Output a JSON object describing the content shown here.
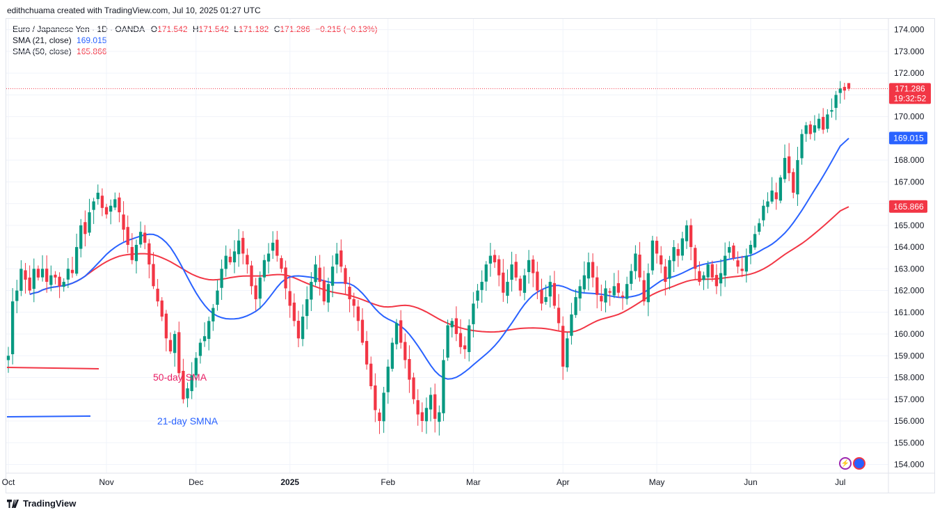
{
  "header": {
    "attribution": "edithchuama created with TradingView.com, Jul 10, 2025 01:27 UTC"
  },
  "legend": {
    "symbol": "Euro / Japanese Yen · 1D · OANDA",
    "o_label": "O",
    "o_value": "171.542",
    "h_label": "H",
    "h_value": "171.542",
    "l_label": "L",
    "l_value": "171.182",
    "c_label": "C",
    "c_value": "171.286",
    "change": "−0.215 (−0.13%)",
    "sma21_label": "SMA (21, close)",
    "sma21_value": "169.015",
    "sma50_label": "SMA (50, close)",
    "sma50_value": "165.866"
  },
  "annotations": {
    "sma50_text": "50-day SMA",
    "sma21_text": "21-day SMNA"
  },
  "footer": {
    "brand": "TradingView"
  },
  "colors": {
    "up": "#089981",
    "down": "#f23645",
    "sma21": "#2962ff",
    "sma50": "#f23645",
    "grid": "#f0f3fa",
    "text": "#131722",
    "anno50": "#e91e63"
  },
  "chart_data": {
    "type": "candlestick",
    "ylim": [
      153.6,
      174.5
    ],
    "y_ticks": [
      "174.000",
      "173.000",
      "172.000",
      "171.000",
      "170.000",
      "169.000",
      "168.000",
      "167.000",
      "166.000",
      "165.000",
      "164.000",
      "163.000",
      "162.000",
      "161.000",
      "160.000",
      "159.000",
      "158.000",
      "157.000",
      "156.000",
      "155.000",
      "154.000"
    ],
    "x_ticks": [
      {
        "label": "Oct",
        "day": 0
      },
      {
        "label": "Nov",
        "day": 23
      },
      {
        "label": "Dec",
        "day": 44
      },
      {
        "label": "2025",
        "day": 66,
        "bold": true
      },
      {
        "label": "Feb",
        "day": 89
      },
      {
        "label": "Mar",
        "day": 109
      },
      {
        "label": "Apr",
        "day": 130
      },
      {
        "label": "May",
        "day": 152
      },
      {
        "label": "Jun",
        "day": 174
      },
      {
        "label": "Jul",
        "day": 195
      }
    ],
    "last_price": {
      "value": 171.286,
      "label": "171.286",
      "countdown": "19:32:52"
    },
    "sma21_last": {
      "value": 169.015,
      "label": "169.015"
    },
    "sma50_last": {
      "value": 165.866,
      "label": "165.866"
    },
    "closes": [
      159.0,
      161.5,
      162.0,
      163.0,
      162.5,
      162.0,
      163.0,
      162.6,
      163.0,
      162.4,
      162.7,
      162.6,
      162.2,
      162.4,
      163.0,
      162.8,
      164.0,
      165.0,
      164.6,
      165.6,
      166.1,
      166.5,
      165.8,
      165.5,
      165.9,
      166.2,
      165.6,
      164.8,
      164.1,
      163.4,
      164.1,
      164.7,
      164.2,
      163.2,
      162.2,
      161.5,
      160.8,
      159.8,
      159.2,
      160.0,
      158.2,
      157.0,
      157.5,
      158.1,
      158.9,
      159.6,
      159.9,
      160.6,
      161.2,
      162.0,
      163.0,
      163.6,
      163.3,
      163.8,
      164.3,
      163.7,
      163.2,
      162.2,
      161.6,
      162.6,
      163.4,
      163.7,
      164.2,
      163.6,
      163.0,
      162.1,
      161.3,
      160.6,
      159.8,
      160.8,
      161.6,
      162.4,
      163.2,
      162.4,
      161.5,
      162.3,
      163.1,
      163.7,
      163.1,
      162.3,
      161.6,
      161.3,
      160.6,
      159.6,
      158.6,
      157.6,
      156.5,
      156.0,
      157.3,
      158.5,
      159.6,
      160.5,
      159.6,
      158.8,
      157.9,
      157.0,
      156.3,
      156.0,
      156.6,
      157.2,
      156.1,
      156.4,
      158.8,
      160.4,
      160.6,
      160.0,
      159.4,
      159.3,
      160.4,
      161.4,
      162.0,
      162.4,
      163.2,
      163.6,
      163.3,
      162.7,
      161.9,
      162.4,
      163.2,
      162.6,
      162.0,
      162.7,
      163.4,
      162.8,
      162.0,
      161.4,
      161.7,
      162.4,
      161.3,
      160.5,
      158.5,
      159.8,
      160.9,
      161.7,
      162.2,
      162.7,
      163.3,
      162.6,
      161.8,
      161.5,
      162.1,
      161.9,
      162.2,
      161.9,
      161.7,
      162.3,
      162.9,
      163.7,
      162.6,
      161.5,
      162.8,
      164.3,
      163.7,
      163.2,
      162.4,
      163.4,
      164.0,
      163.6,
      164.4,
      165.0,
      164.0,
      163.0,
      162.4,
      162.7,
      163.2,
      162.6,
      162.2,
      162.8,
      163.6,
      164.0,
      163.5,
      163.1,
      162.9,
      163.6,
      164.1,
      164.6,
      165.1,
      165.9,
      166.1,
      166.6,
      166.2,
      167.2,
      168.1,
      167.4,
      166.5,
      168.0,
      169.2,
      169.6,
      169.2,
      169.6,
      169.9,
      169.4,
      170.1,
      170.3,
      171.0,
      171.3,
      171.2,
      171.3
    ]
  }
}
